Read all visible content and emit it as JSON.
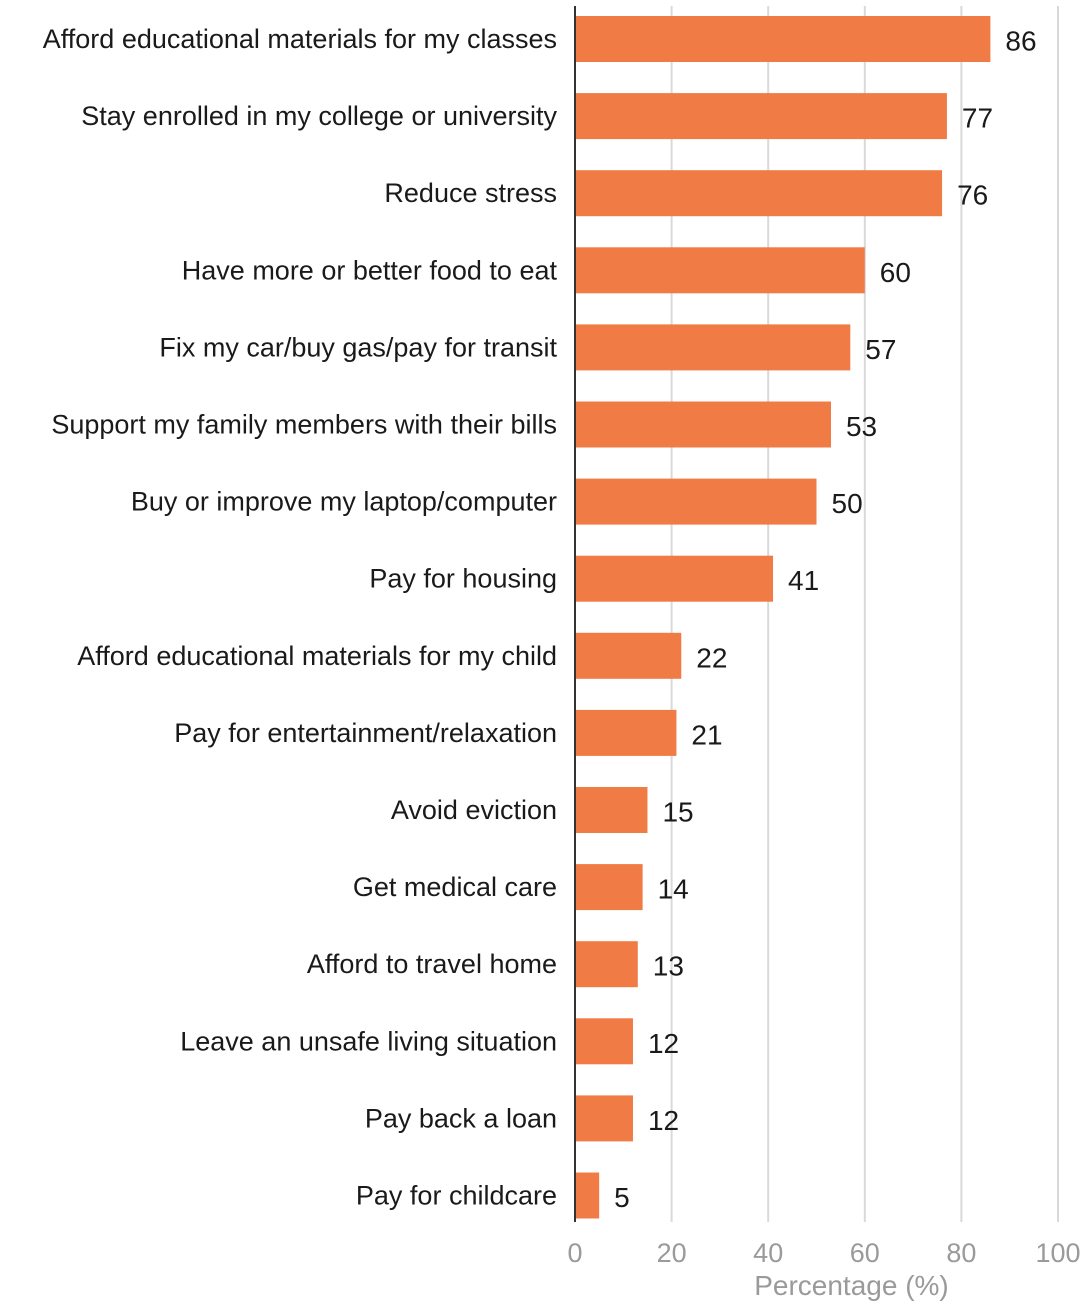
{
  "chart_data": {
    "type": "bar",
    "orientation": "horizontal",
    "categories": [
      "Afford educational materials for my classes",
      "Stay enrolled in my college or university",
      "Reduce stress",
      "Have more or better food to eat",
      "Fix my car/buy gas/pay for transit",
      "Support my family members with their bills",
      "Buy or improve my laptop/computer",
      "Pay for housing",
      "Afford educational materials for my child",
      "Pay for entertainment/relaxation",
      "Avoid eviction",
      "Get medical care",
      "Afford to travel home",
      "Leave an unsafe living situation",
      "Pay back a loan",
      "Pay for childcare"
    ],
    "values": [
      86,
      77,
      76,
      60,
      57,
      53,
      50,
      41,
      22,
      21,
      15,
      14,
      13,
      12,
      12,
      5
    ],
    "data_labels": [
      "86",
      "77",
      "76",
      "60",
      "57",
      "53",
      "50",
      "41",
      "22",
      "21",
      "15",
      "14",
      "13",
      "12",
      "12",
      "5"
    ],
    "title": "",
    "xlabel": "Percentage (%)",
    "ylabel": "",
    "xlim": [
      0,
      100
    ],
    "xticks": [
      0,
      20,
      40,
      60,
      80,
      100
    ],
    "xtick_labels": [
      "0",
      "20",
      "40",
      "60",
      "80",
      "100"
    ],
    "grid": "vertical",
    "legend": "none",
    "colors": {
      "bar": "#f07b44",
      "axis_line": "#333333",
      "grid": "#d9d9d9",
      "tick_text": "#9a9a9a",
      "label_text": "#1a1a1a"
    }
  }
}
